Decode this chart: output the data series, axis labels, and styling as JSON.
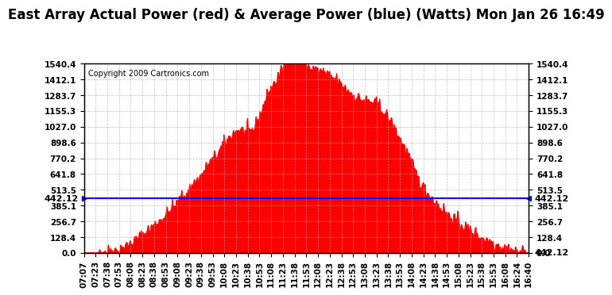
{
  "title": "East Array Actual Power (red) & Average Power (blue) (Watts) Mon Jan 26 16:49",
  "copyright": "Copyright 2009 Cartronics.com",
  "avg_power": 442.12,
  "y_ticks": [
    0.0,
    128.4,
    256.7,
    385.1,
    513.5,
    641.8,
    770.2,
    898.6,
    1027.0,
    1155.3,
    1283.7,
    1412.1,
    1540.4
  ],
  "y_max": 1540.4,
  "x_labels": [
    "07:07",
    "07:23",
    "07:38",
    "07:53",
    "08:08",
    "08:23",
    "08:38",
    "08:53",
    "09:08",
    "09:23",
    "09:38",
    "09:53",
    "10:08",
    "10:23",
    "10:38",
    "10:53",
    "11:08",
    "11:23",
    "11:38",
    "11:53",
    "12:08",
    "12:23",
    "12:38",
    "12:53",
    "13:08",
    "13:23",
    "13:38",
    "13:53",
    "14:08",
    "14:23",
    "14:38",
    "14:53",
    "15:08",
    "15:23",
    "15:38",
    "15:53",
    "16:08",
    "16:24",
    "16:40"
  ],
  "fill_color": "#FF0000",
  "line_color": "#0000FF",
  "bg_color": "#FFFFFF",
  "grid_color": "#AAAAAA",
  "title_fontsize": 12,
  "tick_fontsize": 7.5
}
